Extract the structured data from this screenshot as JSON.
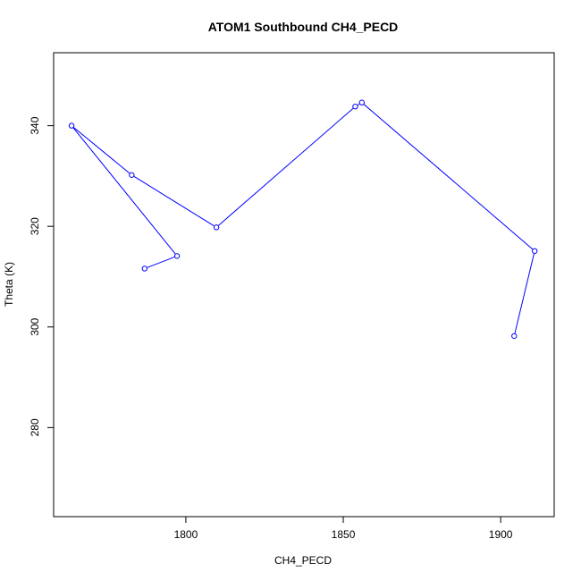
{
  "chart_data": {
    "type": "line",
    "title": "ATOM1 Southbound CH4_PECD",
    "xlabel": "CH4_PECD",
    "ylabel": "Theta (K)",
    "xlim": [
      1758,
      1917
    ],
    "ylim": [
      262.3,
      354.5
    ],
    "x_ticks": [
      1800,
      1850,
      1900
    ],
    "y_ticks": [
      280,
      300,
      320,
      340
    ],
    "grid": false,
    "legend": "none",
    "line_color": "#0000ff",
    "series": [
      {
        "x": [
          1786.9,
          1797.2,
          1763.7,
          1782.8,
          1809.7,
          1853.8,
          1855.9,
          1910.8,
          1904.3
        ],
        "y": [
          311.6,
          314.1,
          340.0,
          330.2,
          319.8,
          343.8,
          344.6,
          315.1,
          298.2
        ]
      }
    ]
  }
}
